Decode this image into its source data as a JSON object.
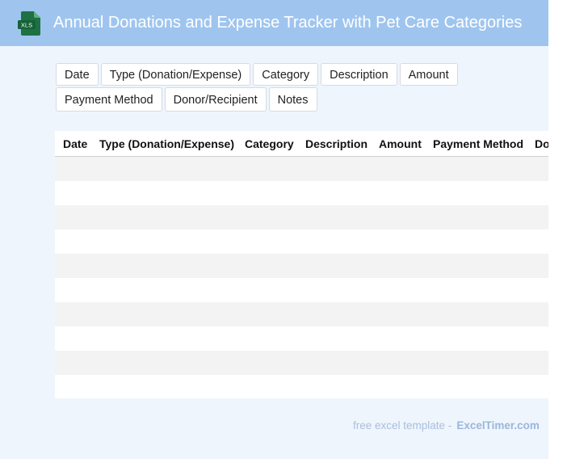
{
  "header": {
    "title": "Annual Donations and Expense Tracker with Pet Care Categories",
    "file_icon": "xls-file-icon",
    "file_icon_label": "XLS",
    "accent": "#9fc5ef",
    "icon_color": "#1e7145"
  },
  "chips": {
    "row1": [
      "Date",
      "Type (Donation/Expense)",
      "Category",
      "Description",
      "Amount"
    ],
    "row2": [
      "Payment Method",
      "Donor/Recipient",
      "Notes"
    ]
  },
  "table": {
    "columns": [
      "Date",
      "Type (Donation/Expense)",
      "Category",
      "Description",
      "Amount",
      "Payment Method",
      "Donor/Recipient"
    ],
    "row_count": 10
  },
  "footer": {
    "prefix": "free excel template -",
    "brand": "ExcelTimer.com"
  }
}
